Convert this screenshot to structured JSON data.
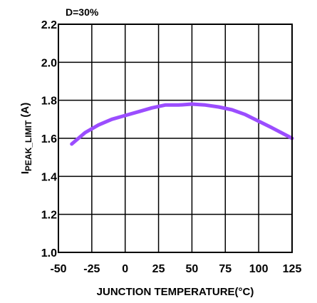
{
  "chart_data": {
    "type": "line",
    "annotation": "D=30%",
    "xlabel": "JUNCTION TEMPERATURE(°C)",
    "ylabel_main": "I",
    "ylabel_sub": "PEAK_LIMIT",
    "ylabel_unit": " (A)",
    "xlim": [
      -50,
      125
    ],
    "ylim": [
      1.0,
      2.2
    ],
    "xticks": [
      -50,
      -25,
      0,
      25,
      50,
      75,
      100,
      125
    ],
    "xtick_labels": [
      "-50",
      "-25",
      "0",
      "25",
      "50",
      "75",
      "100",
      "125"
    ],
    "yticks": [
      1.0,
      1.2,
      1.4,
      1.6,
      1.8,
      2.0,
      2.2
    ],
    "ytick_labels": [
      "1.0",
      "1.2",
      "1.4",
      "1.6",
      "1.8",
      "2.0",
      "2.2"
    ],
    "grid": true,
    "series": [
      {
        "color": "#9b4dff",
        "x": [
          -40,
          -30,
          -20,
          -10,
          0,
          10,
          20,
          30,
          40,
          50,
          60,
          70,
          80,
          90,
          100,
          110,
          125
        ],
        "y": [
          1.57,
          1.63,
          1.67,
          1.7,
          1.72,
          1.74,
          1.76,
          1.775,
          1.775,
          1.78,
          1.775,
          1.765,
          1.75,
          1.725,
          1.69,
          1.655,
          1.6
        ]
      }
    ]
  }
}
